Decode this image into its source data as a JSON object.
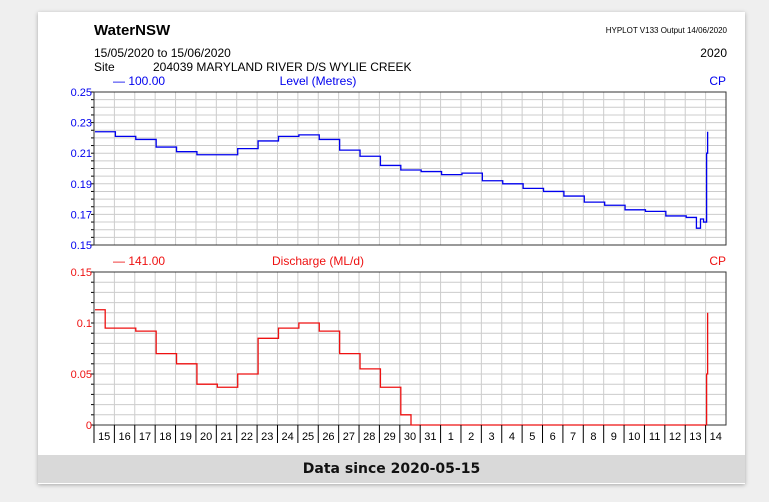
{
  "header": {
    "brand": "WaterNSW",
    "version": "HYPLOT V133  Output 14/06/2020",
    "date_range": "15/05/2020  to  15/06/2020",
    "year": "2020",
    "site_label": "Site",
    "site": "204039  MARYLAND RIVER D/S WYLIE CREEK"
  },
  "footer": {
    "text": "Data since 2020-05-15"
  },
  "colors": {
    "level": "#0000ee",
    "discharge": "#ee1111"
  },
  "chart_data": [
    {
      "type": "line",
      "title": "Level (Metres)",
      "legend": "100.00",
      "tag": "CP",
      "ylim": [
        0.15,
        0.25
      ],
      "yticks": [
        "0.25",
        "0.23",
        "0.21",
        "0.19",
        "0.17",
        "0.15"
      ],
      "categories": [
        "15",
        "16",
        "17",
        "18",
        "19",
        "20",
        "21",
        "22",
        "23",
        "24",
        "25",
        "26",
        "27",
        "28",
        "29",
        "30",
        "31",
        "1",
        "2",
        "3",
        "4",
        "5",
        "6",
        "7",
        "8",
        "9",
        "10",
        "11",
        "12",
        "13",
        "14"
      ],
      "x": [
        0,
        1,
        2,
        3,
        4,
        5,
        6,
        7,
        8,
        9,
        10,
        11,
        12,
        13,
        14,
        15,
        16,
        17,
        18,
        19,
        20,
        21,
        22,
        23,
        24,
        25,
        26,
        27,
        28,
        29,
        29.5,
        29.7,
        29.85,
        30,
        30.05
      ],
      "values": [
        0.224,
        0.221,
        0.219,
        0.214,
        0.211,
        0.209,
        0.209,
        0.213,
        0.218,
        0.221,
        0.222,
        0.219,
        0.212,
        0.208,
        0.202,
        0.199,
        0.198,
        0.196,
        0.197,
        0.192,
        0.19,
        0.187,
        0.185,
        0.182,
        0.178,
        0.176,
        0.173,
        0.172,
        0.169,
        0.168,
        0.161,
        0.167,
        0.165,
        0.21,
        0.224
      ]
    },
    {
      "type": "line",
      "title": "Discharge (ML/d)",
      "legend": "141.00",
      "tag": "CP",
      "ylim": [
        0,
        0.15
      ],
      "yticks": [
        "0.15",
        "0.1",
        "0.05",
        "0"
      ],
      "x": [
        0,
        0.5,
        1,
        2,
        3,
        4,
        5,
        6,
        6.5,
        7,
        8,
        9,
        10,
        11,
        12,
        13,
        14,
        15,
        15.5,
        16,
        29.9,
        30,
        30.05
      ],
      "values": [
        0.113,
        0.095,
        0.095,
        0.092,
        0.07,
        0.06,
        0.04,
        0.037,
        0.037,
        0.05,
        0.085,
        0.095,
        0.1,
        0.092,
        0.07,
        0.055,
        0.037,
        0.01,
        0,
        0,
        0,
        0.05,
        0.11
      ]
    }
  ]
}
